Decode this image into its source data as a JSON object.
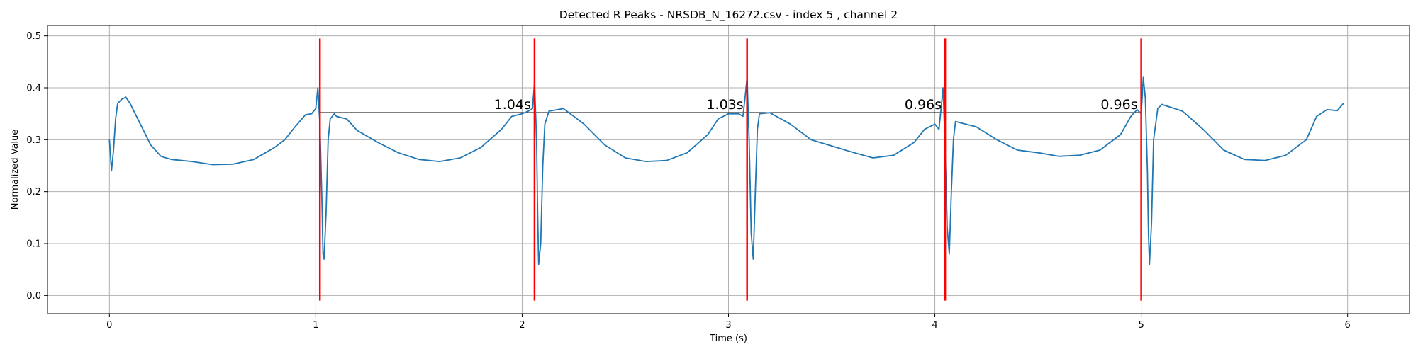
{
  "chart_data": {
    "type": "line",
    "title": "Detected R Peaks - NRSDB_N_16272.csv - index 5 , channel 2",
    "xlabel": "Time (s)",
    "ylabel": "Normalized Value",
    "xlim": [
      -0.3,
      6.3
    ],
    "ylim": [
      -0.035,
      0.52
    ],
    "x_ticks": [
      0,
      1,
      2,
      3,
      4,
      5,
      6
    ],
    "y_ticks": [
      0.0,
      0.1,
      0.2,
      0.3,
      0.4,
      0.5
    ],
    "x_tick_labels": [
      "0",
      "1",
      "2",
      "3",
      "4",
      "5",
      "6"
    ],
    "y_tick_labels": [
      "0.0",
      "0.1",
      "0.2",
      "0.3",
      "0.4",
      "0.5"
    ],
    "grid": true,
    "colors": {
      "signal": "#1f77b4",
      "peaks": "#ff0000",
      "interval": "#000000",
      "grid": "#b0b0b0"
    },
    "series": [
      {
        "x": [
          0.0,
          0.01,
          0.02,
          0.03,
          0.04,
          0.06,
          0.08,
          0.1,
          0.15,
          0.2,
          0.25,
          0.3,
          0.4,
          0.5,
          0.6,
          0.7,
          0.8,
          0.85,
          0.9,
          0.95,
          0.98,
          1.0,
          1.01,
          1.02,
          1.03,
          1.035,
          1.04,
          1.05,
          1.06,
          1.07,
          1.09,
          1.1,
          1.15,
          1.2,
          1.3,
          1.4,
          1.5,
          1.6,
          1.7,
          1.8,
          1.9,
          1.95,
          2.0,
          2.03,
          2.05,
          2.06,
          2.07,
          2.075,
          2.08,
          2.09,
          2.1,
          2.11,
          2.13,
          2.2,
          2.3,
          2.4,
          2.5,
          2.6,
          2.7,
          2.8,
          2.9,
          2.95,
          3.0,
          3.05,
          3.07,
          3.08,
          3.09,
          3.1,
          3.11,
          3.12,
          3.13,
          3.14,
          3.15,
          3.2,
          3.3,
          3.4,
          3.5,
          3.6,
          3.7,
          3.8,
          3.9,
          3.95,
          4.0,
          4.02,
          4.03,
          4.04,
          4.05,
          4.06,
          4.07,
          4.08,
          4.09,
          4.1,
          4.15,
          4.2,
          4.3,
          4.4,
          4.5,
          4.6,
          4.7,
          4.8,
          4.9,
          4.95,
          4.98,
          5.0,
          5.01,
          5.02,
          5.03,
          5.035,
          5.04,
          5.05,
          5.06,
          5.08,
          5.1,
          5.2,
          5.3,
          5.4,
          5.5,
          5.6,
          5.7,
          5.8,
          5.85,
          5.9,
          5.95,
          5.98
        ],
        "values": [
          0.3,
          0.24,
          0.28,
          0.34,
          0.37,
          0.378,
          0.382,
          0.37,
          0.33,
          0.29,
          0.268,
          0.262,
          0.258,
          0.252,
          0.253,
          0.262,
          0.285,
          0.3,
          0.325,
          0.348,
          0.35,
          0.36,
          0.4,
          0.33,
          0.18,
          0.08,
          0.07,
          0.16,
          0.3,
          0.34,
          0.35,
          0.345,
          0.34,
          0.318,
          0.295,
          0.275,
          0.262,
          0.258,
          0.265,
          0.285,
          0.32,
          0.345,
          0.35,
          0.355,
          0.36,
          0.41,
          0.3,
          0.16,
          0.06,
          0.1,
          0.25,
          0.33,
          0.355,
          0.36,
          0.33,
          0.29,
          0.265,
          0.258,
          0.26,
          0.275,
          0.31,
          0.34,
          0.35,
          0.35,
          0.345,
          0.38,
          0.42,
          0.3,
          0.12,
          0.07,
          0.2,
          0.32,
          0.35,
          0.352,
          0.33,
          0.3,
          0.288,
          0.276,
          0.265,
          0.27,
          0.295,
          0.32,
          0.33,
          0.32,
          0.36,
          0.4,
          0.28,
          0.13,
          0.08,
          0.2,
          0.3,
          0.335,
          0.33,
          0.325,
          0.3,
          0.28,
          0.275,
          0.268,
          0.27,
          0.28,
          0.31,
          0.345,
          0.358,
          0.35,
          0.42,
          0.38,
          0.24,
          0.12,
          0.06,
          0.14,
          0.3,
          0.36,
          0.368,
          0.355,
          0.32,
          0.28,
          0.262,
          0.26,
          0.27,
          0.3,
          0.345,
          0.358,
          0.356,
          0.37
        ]
      }
    ],
    "r_peaks": [
      1.02,
      2.06,
      3.09,
      4.05,
      5.0
    ],
    "peak_line_range": [
      -0.01,
      0.495
    ],
    "interval_line_y": 0.352,
    "interval_labels": [
      "1.04s",
      "1.03s",
      "0.96s",
      "0.96s"
    ]
  }
}
